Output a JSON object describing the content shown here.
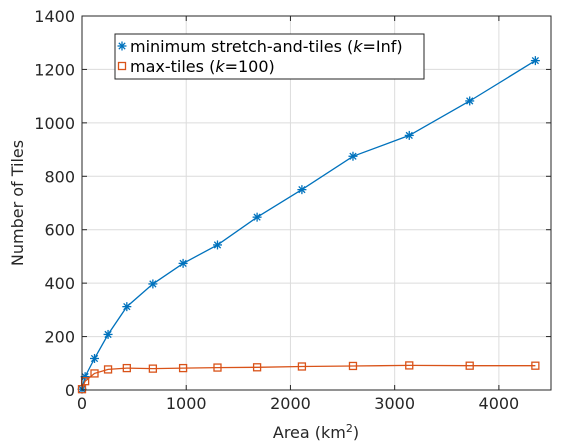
{
  "chart_data": {
    "type": "line",
    "xlabel": "Area (km",
    "xlabel_sup": "2",
    "xlabel_end": ")",
    "ylabel": "Number of Tiles",
    "xlim": [
      0,
      4500
    ],
    "ylim": [
      0,
      1400
    ],
    "xticks": [
      0,
      1000,
      2000,
      3000,
      4000
    ],
    "yticks": [
      0,
      200,
      400,
      600,
      800,
      1000,
      1200,
      1400
    ],
    "grid": true,
    "legend_placement": "top-left",
    "series": [
      {
        "name": "minimum stretch-and-tiles (",
        "name_italic": "k",
        "name_end": "=Inf)",
        "color": "#0072BD",
        "marker": "asterisk",
        "x": [
          0,
          30,
          120,
          250,
          430,
          680,
          970,
          1300,
          1680,
          2110,
          2600,
          3140,
          3720,
          4350
        ],
        "y": [
          3,
          50,
          118,
          208,
          312,
          397,
          474,
          543,
          647,
          750,
          875,
          953,
          1082,
          1233
        ]
      },
      {
        "name": "max-tiles (",
        "name_italic": "k",
        "name_end": "=100)",
        "color": "#D95319",
        "marker": "square",
        "x": [
          0,
          30,
          120,
          250,
          430,
          680,
          970,
          1300,
          1680,
          2110,
          2600,
          3140,
          3720,
          4350
        ],
        "y": [
          3,
          33,
          62,
          77,
          82,
          80,
          82,
          84,
          85,
          88,
          90,
          92,
          91,
          91
        ]
      }
    ]
  }
}
